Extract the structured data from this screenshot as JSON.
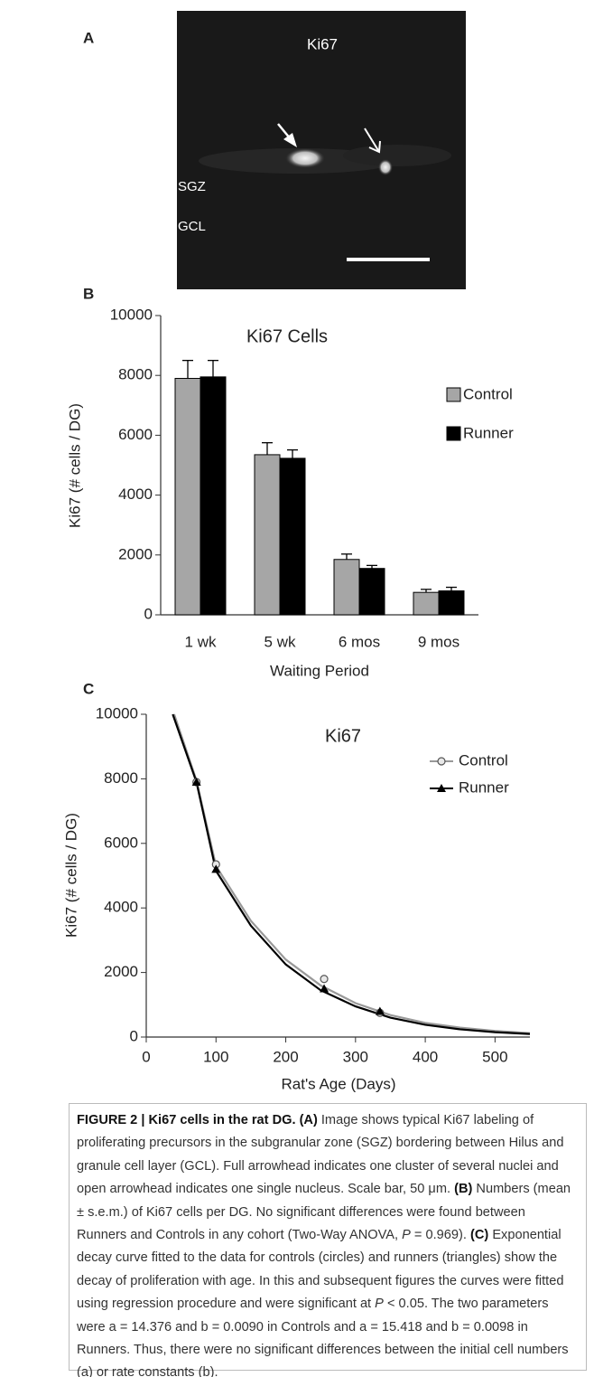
{
  "figure": {
    "panel_a": {
      "label": "A",
      "title": "Ki67",
      "zones": [
        "SGZ",
        "GCL"
      ]
    },
    "caption": [
      {
        "text": "FIGURE 2 | Ki67 cells in the rat DG. (A)",
        "style": "bold"
      },
      {
        "text": " Image shows typical Ki67 labeling of proliferating precursors in the subgranular zone (SGZ) bordering between Hilus and granule cell layer (GCL). Full arrowhead indicates one cluster of several nuclei and open arrowhead indicates one single nucleus. Scale bar, 50 μm. "
      },
      {
        "text": "(B)",
        "style": "bold"
      },
      {
        "text": " Numbers (mean ± s.e.m.) of Ki67 cells per DG. No significant differences were found between Runners and Controls in any cohort (Two-Way ANOVA, "
      },
      {
        "text": "P",
        "style": "italic"
      },
      {
        "text": " = 0.969). "
      },
      {
        "text": "(C)",
        "style": "bold"
      },
      {
        "text": " Exponential decay curve fitted to the data for controls (circles) and runners (triangles) show the decay of proliferation with age. In this and subsequent figures the curves were fitted using regression procedure and were significant at "
      },
      {
        "text": "P",
        "style": "italic"
      },
      {
        "text": " < 0.05. The two parameters were a = 14.376 and b = 0.0090 in Controls and a = 15.418 and b = 0.0098 in Runners. Thus, there were no significant differences between the initial cell numbers (a) or rate constants (b)."
      }
    ]
  },
  "chart_data": [
    {
      "type": "bar",
      "panel_label": "B",
      "title": "Ki67 Cells",
      "x_label": "Waiting Period",
      "y_label": "Ki67 (# cells / DG)",
      "categories": [
        "1 wk",
        "5 wk",
        "6 mos",
        "9 mos"
      ],
      "series": [
        {
          "name": "Control",
          "color": "#a6a6a6",
          "values": [
            7900,
            5350,
            1850,
            750
          ],
          "errors": [
            600,
            400,
            180,
            100
          ]
        },
        {
          "name": "Runner",
          "color": "#000000",
          "values": [
            7950,
            5230,
            1550,
            800
          ],
          "errors": [
            550,
            280,
            100,
            120
          ]
        }
      ],
      "ylim": [
        0,
        10000
      ],
      "yticks": [
        0,
        2000,
        4000,
        6000,
        8000,
        10000
      ],
      "grid": false,
      "legend": "right"
    },
    {
      "type": "scatter",
      "panel_label": "C",
      "title": "Ki67",
      "x_label": "Rat's Age (Days)",
      "y_label": "Ki67 (# cells / DG)",
      "series": [
        {
          "name": "Control",
          "color": "#999999",
          "marker": "circle",
          "x": [
            72,
            100,
            255,
            335
          ],
          "values": [
            7900,
            5350,
            1800,
            750
          ],
          "curve_x": [
            40,
            72,
            100,
            150,
            200,
            250,
            300,
            350,
            400,
            450,
            500,
            550
          ],
          "curve_y": [
            10000,
            7950,
            5300,
            3600,
            2400,
            1600,
            1050,
            680,
            440,
            290,
            190,
            120
          ]
        },
        {
          "name": "Runner",
          "color": "#000000",
          "marker": "triangle",
          "x": [
            72,
            100,
            255,
            335
          ],
          "values": [
            7900,
            5200,
            1500,
            800
          ],
          "curve_x": [
            38,
            72,
            100,
            150,
            200,
            250,
            300,
            350,
            400,
            450,
            500,
            550
          ],
          "curve_y": [
            10000,
            7900,
            5150,
            3450,
            2250,
            1450,
            950,
            600,
            380,
            240,
            150,
            95
          ]
        }
      ],
      "xlim": [
        0,
        550
      ],
      "xticks": [
        0,
        100,
        200,
        300,
        400,
        500
      ],
      "ylim": [
        0,
        10000
      ],
      "yticks": [
        0,
        2000,
        4000,
        6000,
        8000,
        10000
      ],
      "grid": false,
      "legend": "right"
    }
  ]
}
